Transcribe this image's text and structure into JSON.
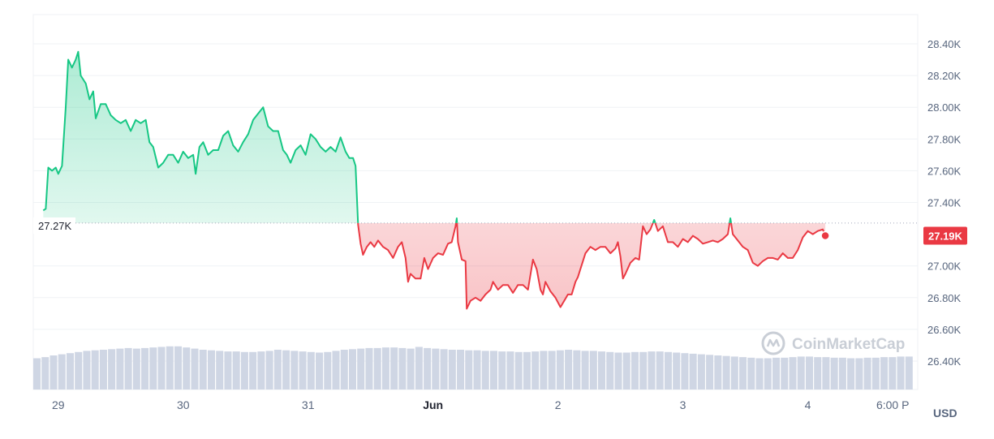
{
  "chart_data": {
    "type": "area",
    "ylim": [
      26.25,
      28.55
    ],
    "y_unit": "K",
    "y_ticks": [
      {
        "value": 28.4,
        "label": "28.40K"
      },
      {
        "value": 28.2,
        "label": "28.20K"
      },
      {
        "value": 28.0,
        "label": "28.00K"
      },
      {
        "value": 27.8,
        "label": "27.80K"
      },
      {
        "value": 27.6,
        "label": "27.60K"
      },
      {
        "value": 27.4,
        "label": "27.40K"
      },
      {
        "value": 27.0,
        "label": "27.00K"
      },
      {
        "value": 26.8,
        "label": "26.80K"
      },
      {
        "value": 26.6,
        "label": "26.60K"
      },
      {
        "value": 26.4,
        "label": "26.40K"
      }
    ],
    "x_ticks": [
      {
        "value": 0.2,
        "label": "29",
        "bold": false
      },
      {
        "value": 1.2,
        "label": "30",
        "bold": false
      },
      {
        "value": 2.2,
        "label": "31",
        "bold": false
      },
      {
        "value": 3.2,
        "label": "Jun",
        "bold": true
      },
      {
        "value": 4.2,
        "label": "2",
        "bold": false
      },
      {
        "value": 5.2,
        "label": "3",
        "bold": false
      },
      {
        "value": 6.2,
        "label": "4",
        "bold": false
      },
      {
        "value": 6.88,
        "label": "6:00 P",
        "bold": false
      }
    ],
    "xlim": [
      0,
      7.08
    ],
    "reference_value": 27.27,
    "reference_label": "27.27K",
    "last_value": 27.19,
    "last_label": "27.19K",
    "currency_label": "USD",
    "series": [
      {
        "points": [
          [
            0.08,
            27.35
          ],
          [
            0.1,
            27.36
          ],
          [
            0.12,
            27.62
          ],
          [
            0.15,
            27.6
          ],
          [
            0.18,
            27.62
          ],
          [
            0.2,
            27.58
          ],
          [
            0.23,
            27.63
          ],
          [
            0.26,
            28.0
          ],
          [
            0.28,
            28.3
          ],
          [
            0.31,
            28.25
          ],
          [
            0.34,
            28.3
          ],
          [
            0.36,
            28.35
          ],
          [
            0.38,
            28.2
          ],
          [
            0.42,
            28.15
          ],
          [
            0.45,
            28.05
          ],
          [
            0.48,
            28.1
          ],
          [
            0.5,
            27.93
          ],
          [
            0.54,
            28.02
          ],
          [
            0.58,
            28.02
          ],
          [
            0.62,
            27.95
          ],
          [
            0.66,
            27.92
          ],
          [
            0.7,
            27.9
          ],
          [
            0.74,
            27.92
          ],
          [
            0.78,
            27.85
          ],
          [
            0.82,
            27.92
          ],
          [
            0.86,
            27.9
          ],
          [
            0.9,
            27.92
          ],
          [
            0.93,
            27.78
          ],
          [
            0.96,
            27.75
          ],
          [
            1.0,
            27.62
          ],
          [
            1.04,
            27.65
          ],
          [
            1.08,
            27.7
          ],
          [
            1.12,
            27.7
          ],
          [
            1.16,
            27.65
          ],
          [
            1.2,
            27.72
          ],
          [
            1.24,
            27.68
          ],
          [
            1.28,
            27.7
          ],
          [
            1.3,
            27.58
          ],
          [
            1.33,
            27.75
          ],
          [
            1.36,
            27.78
          ],
          [
            1.4,
            27.7
          ],
          [
            1.44,
            27.73
          ],
          [
            1.48,
            27.73
          ],
          [
            1.52,
            27.82
          ],
          [
            1.56,
            27.85
          ],
          [
            1.6,
            27.76
          ],
          [
            1.64,
            27.72
          ],
          [
            1.68,
            27.78
          ],
          [
            1.72,
            27.83
          ],
          [
            1.76,
            27.92
          ],
          [
            1.8,
            27.96
          ],
          [
            1.84,
            28.0
          ],
          [
            1.88,
            27.88
          ],
          [
            1.92,
            27.85
          ],
          [
            1.96,
            27.85
          ],
          [
            2.0,
            27.73
          ],
          [
            2.03,
            27.7
          ],
          [
            2.06,
            27.65
          ],
          [
            2.1,
            27.73
          ],
          [
            2.14,
            27.76
          ],
          [
            2.18,
            27.7
          ],
          [
            2.22,
            27.83
          ],
          [
            2.26,
            27.8
          ],
          [
            2.3,
            27.75
          ],
          [
            2.34,
            27.72
          ],
          [
            2.38,
            27.75
          ],
          [
            2.42,
            27.72
          ],
          [
            2.46,
            27.81
          ],
          [
            2.5,
            27.72
          ],
          [
            2.53,
            27.68
          ],
          [
            2.56,
            27.68
          ],
          [
            2.58,
            27.63
          ],
          [
            2.6,
            27.26
          ],
          [
            2.62,
            27.14
          ],
          [
            2.64,
            27.07
          ],
          [
            2.67,
            27.12
          ],
          [
            2.7,
            27.15
          ],
          [
            2.73,
            27.12
          ],
          [
            2.76,
            27.16
          ],
          [
            2.8,
            27.12
          ],
          [
            2.84,
            27.1
          ],
          [
            2.88,
            27.05
          ],
          [
            2.92,
            27.12
          ],
          [
            2.95,
            27.15
          ],
          [
            2.98,
            27.05
          ],
          [
            3.0,
            26.9
          ],
          [
            3.02,
            26.95
          ],
          [
            3.06,
            26.92
          ],
          [
            3.1,
            26.92
          ],
          [
            3.13,
            27.05
          ],
          [
            3.16,
            26.98
          ],
          [
            3.2,
            27.05
          ],
          [
            3.24,
            27.08
          ],
          [
            3.28,
            27.07
          ],
          [
            3.32,
            27.14
          ],
          [
            3.35,
            27.15
          ],
          [
            3.38,
            27.25
          ],
          [
            3.39,
            27.3
          ],
          [
            3.4,
            27.15
          ],
          [
            3.43,
            27.04
          ],
          [
            3.46,
            27.03
          ],
          [
            3.47,
            26.73
          ],
          [
            3.5,
            26.78
          ],
          [
            3.54,
            26.8
          ],
          [
            3.58,
            26.78
          ],
          [
            3.62,
            26.82
          ],
          [
            3.66,
            26.85
          ],
          [
            3.68,
            26.9
          ],
          [
            3.72,
            26.85
          ],
          [
            3.76,
            26.88
          ],
          [
            3.8,
            26.88
          ],
          [
            3.84,
            26.83
          ],
          [
            3.88,
            26.88
          ],
          [
            3.92,
            26.88
          ],
          [
            3.96,
            26.85
          ],
          [
            4.0,
            27.04
          ],
          [
            4.03,
            26.98
          ],
          [
            4.06,
            26.85
          ],
          [
            4.08,
            26.82
          ],
          [
            4.1,
            26.9
          ],
          [
            4.14,
            26.84
          ],
          [
            4.18,
            26.8
          ],
          [
            4.22,
            26.74
          ],
          [
            4.25,
            26.78
          ],
          [
            4.28,
            26.82
          ],
          [
            4.31,
            26.82
          ],
          [
            4.34,
            26.9
          ],
          [
            4.36,
            26.93
          ],
          [
            4.38,
            26.98
          ],
          [
            4.42,
            27.08
          ],
          [
            4.46,
            27.12
          ],
          [
            4.5,
            27.1
          ],
          [
            4.54,
            27.12
          ],
          [
            4.58,
            27.12
          ],
          [
            4.62,
            27.08
          ],
          [
            4.66,
            27.11
          ],
          [
            4.68,
            27.15
          ],
          [
            4.7,
            27.06
          ],
          [
            4.72,
            26.92
          ],
          [
            4.74,
            26.95
          ],
          [
            4.78,
            27.02
          ],
          [
            4.82,
            27.05
          ],
          [
            4.85,
            27.04
          ],
          [
            4.88,
            27.25
          ],
          [
            4.91,
            27.2
          ],
          [
            4.94,
            27.23
          ],
          [
            4.97,
            27.29
          ],
          [
            5.0,
            27.22
          ],
          [
            5.04,
            27.25
          ],
          [
            5.08,
            27.15
          ],
          [
            5.12,
            27.15
          ],
          [
            5.16,
            27.12
          ],
          [
            5.2,
            27.17
          ],
          [
            5.24,
            27.15
          ],
          [
            5.28,
            27.19
          ],
          [
            5.32,
            27.17
          ],
          [
            5.36,
            27.14
          ],
          [
            5.4,
            27.15
          ],
          [
            5.44,
            27.16
          ],
          [
            5.48,
            27.15
          ],
          [
            5.52,
            27.17
          ],
          [
            5.56,
            27.2
          ],
          [
            5.58,
            27.3
          ],
          [
            5.6,
            27.2
          ],
          [
            5.64,
            27.16
          ],
          [
            5.68,
            27.12
          ],
          [
            5.72,
            27.1
          ],
          [
            5.76,
            27.02
          ],
          [
            5.8,
            27.0
          ],
          [
            5.84,
            27.03
          ],
          [
            5.88,
            27.05
          ],
          [
            5.92,
            27.05
          ],
          [
            5.96,
            27.04
          ],
          [
            6.0,
            27.08
          ],
          [
            6.04,
            27.05
          ],
          [
            6.08,
            27.05
          ],
          [
            6.12,
            27.1
          ],
          [
            6.16,
            27.18
          ],
          [
            6.2,
            27.22
          ],
          [
            6.24,
            27.2
          ],
          [
            6.28,
            27.22
          ],
          [
            6.32,
            27.23
          ],
          [
            6.34,
            27.19
          ]
        ]
      }
    ],
    "volume": [
      0.55,
      0.57,
      0.6,
      0.62,
      0.64,
      0.66,
      0.68,
      0.69,
      0.7,
      0.71,
      0.72,
      0.73,
      0.72,
      0.73,
      0.74,
      0.75,
      0.76,
      0.76,
      0.74,
      0.72,
      0.7,
      0.69,
      0.68,
      0.67,
      0.67,
      0.66,
      0.66,
      0.67,
      0.68,
      0.7,
      0.69,
      0.68,
      0.67,
      0.66,
      0.65,
      0.66,
      0.68,
      0.7,
      0.71,
      0.72,
      0.73,
      0.73,
      0.74,
      0.74,
      0.73,
      0.72,
      0.75,
      0.73,
      0.72,
      0.71,
      0.7,
      0.7,
      0.69,
      0.69,
      0.68,
      0.68,
      0.67,
      0.67,
      0.66,
      0.66,
      0.67,
      0.68,
      0.68,
      0.69,
      0.7,
      0.69,
      0.68,
      0.68,
      0.67,
      0.66,
      0.65,
      0.65,
      0.66,
      0.66,
      0.67,
      0.67,
      0.66,
      0.65,
      0.64,
      0.63,
      0.62,
      0.61,
      0.6,
      0.59,
      0.58,
      0.57,
      0.56,
      0.55,
      0.55,
      0.56,
      0.56,
      0.57,
      0.58,
      0.58,
      0.57,
      0.57,
      0.56,
      0.56,
      0.55,
      0.55,
      0.56,
      0.56,
      0.57,
      0.57,
      0.58,
      0.58
    ]
  },
  "watermark": {
    "text": "CoinMarketCap",
    "icon": "coinmarketcap-logo-icon"
  },
  "colors": {
    "up": "#16c784",
    "down": "#ea3943",
    "grid": "#eff2f5",
    "axis_text": "#58667e",
    "volume": "#cfd6e4",
    "reference": "#a1a7bb"
  }
}
